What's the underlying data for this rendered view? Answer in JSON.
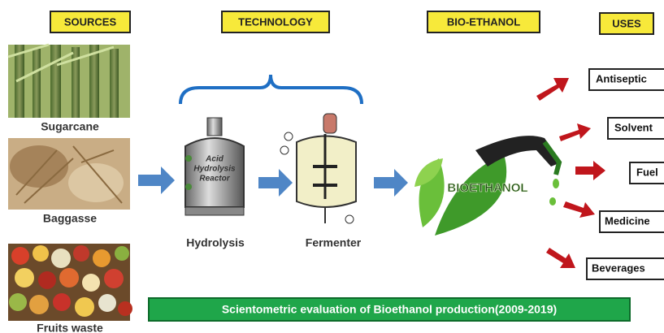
{
  "headers": [
    "SOURCES",
    "TECHNOLOGY",
    "BIO-ETHANOL",
    "USES"
  ],
  "sources": [
    "Sugarcane",
    "Baggasse",
    "Fruits waste"
  ],
  "technology": {
    "reactor_label": [
      "Acid",
      "Hydrolysis",
      "Reactor"
    ],
    "steps": [
      "Hydrolysis",
      "Fermenter"
    ]
  },
  "product_label": "BIOETHANOL",
  "uses": [
    "Antiseptic",
    "Solvent",
    "Fuel",
    "Medicine",
    "Beverages"
  ],
  "footer": "Scientometric evaluation of Bioethanol production(2009-2019)"
}
